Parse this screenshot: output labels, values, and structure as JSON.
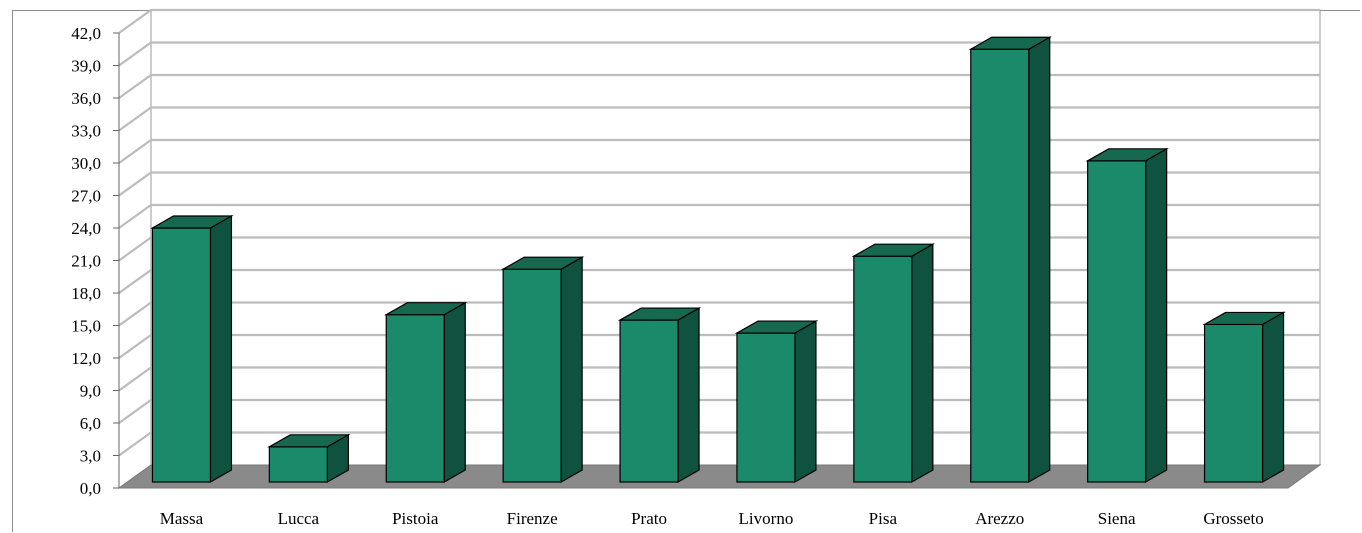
{
  "chart_data": {
    "type": "bar",
    "style": "3d-column",
    "categories": [
      "Massa",
      "Lucca",
      "Pistoia",
      "Firenze",
      "Prato",
      "Livorno",
      "Pisa",
      "Arezzo",
      "Siena",
      "Grosseto"
    ],
    "values": [
      24.0,
      3.8,
      16.0,
      20.2,
      15.5,
      14.3,
      21.4,
      40.5,
      30.2,
      15.1
    ],
    "ylim": [
      0,
      42
    ],
    "yticks": [
      "0,0",
      "3,0",
      "6,0",
      "9,0",
      "12,0",
      "15,0",
      "18,0",
      "21,0",
      "24,0",
      "27,0",
      "30,0",
      "33,0",
      "36,0",
      "39,0",
      "42,0"
    ],
    "title": "",
    "xlabel": "",
    "ylabel": "",
    "grid": true,
    "legend": "none",
    "colors": {
      "bar_front": "#1a8a6a",
      "bar_side": "#0f5240",
      "bar_top": "#16694f",
      "floor": "#8a8a8a",
      "gridline": "#bcbcbc"
    }
  }
}
